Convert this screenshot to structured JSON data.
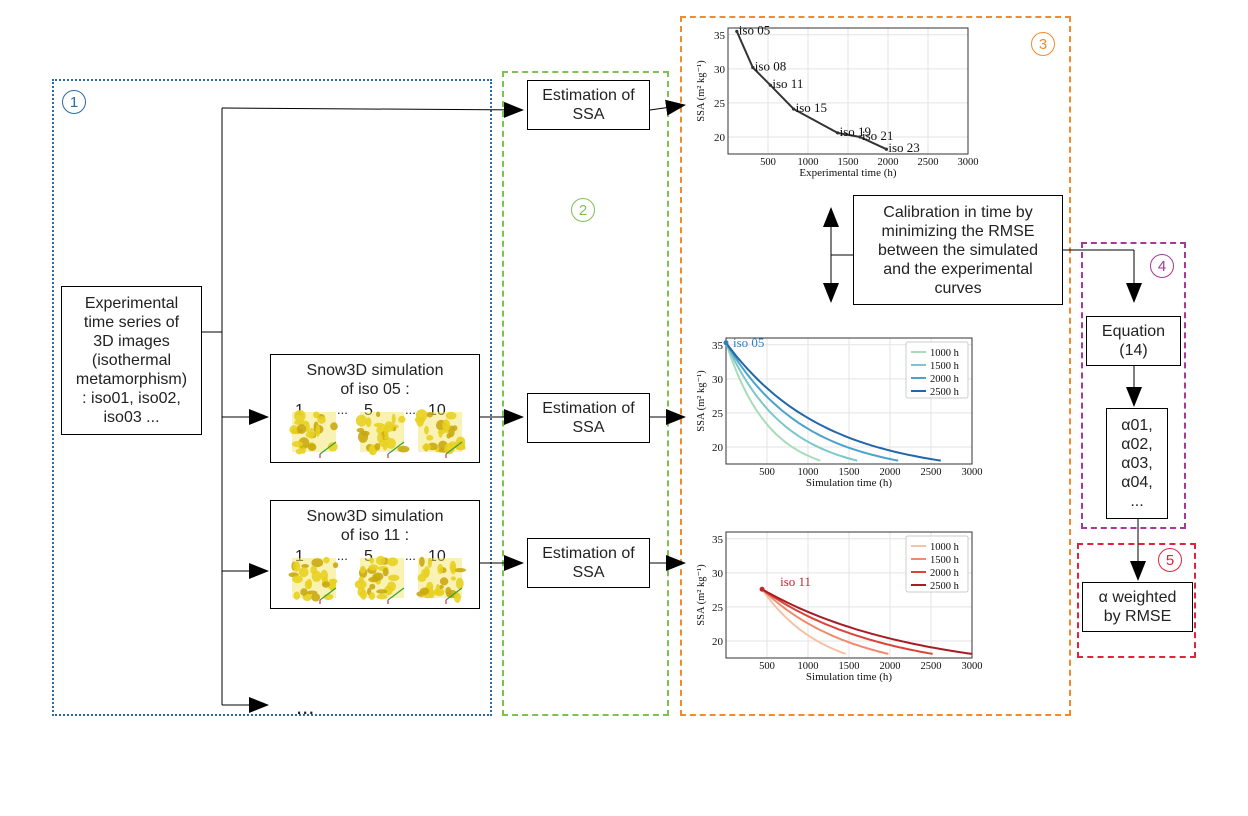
{
  "panels": [
    {
      "number": "1",
      "color": "#2b6aa8"
    },
    {
      "number": "2",
      "color": "#7cc152"
    },
    {
      "number": "3",
      "color": "#f28a2e"
    },
    {
      "number": "4",
      "color": "#a6389a"
    },
    {
      "number": "5",
      "color": "#e2233d"
    }
  ],
  "boxes": {
    "experimental": "Experimental time series of 3D images (isothermal metamorphism) : iso01, iso02, iso03 ...",
    "sim_iso05": "Snow3D simulation of iso 05 :",
    "sim_iso11": "Snow3D simulation of iso 11 :",
    "estimation_1": "Estimation of SSA",
    "estimation_2": "Estimation of SSA",
    "estimation_3": "Estimation of SSA",
    "calibration": "Calibration in time by minimizing the RMSE between the simulated and the experimental curves",
    "equation": "Equation (14)",
    "alphas": [
      "α01,",
      "α02,",
      "α03,",
      "α04,",
      "..."
    ],
    "weighted": "α weighted by RMSE"
  },
  "snapshot_labels": [
    "1",
    "...",
    "5",
    "...",
    "10"
  ],
  "ellipsis": "...",
  "colors": {
    "snow": "#e8d020",
    "line": "#000000"
  },
  "chart_data": [
    {
      "type": "line",
      "xlabel": "Experimental time (h)",
      "ylabel": "SSA  (m² kg⁻¹)",
      "xticks": [
        500,
        1000,
        1500,
        2000,
        2500,
        3000
      ],
      "yticks": [
        20,
        25,
        30,
        35
      ],
      "xlim": [
        0,
        3000
      ],
      "ylim": [
        17.5,
        36
      ],
      "grid": true,
      "series": [
        {
          "values": [
            [
              110,
              35.5
            ],
            [
              310,
              30.2
            ],
            [
              530,
              27.6
            ],
            [
              820,
              24.1
            ],
            [
              1370,
              20.6
            ],
            [
              1650,
              20.0
            ],
            [
              1980,
              18.2
            ]
          ],
          "color": "#333333"
        }
      ],
      "annotations": [
        {
          "text": "iso 05",
          "x": 110,
          "y": 35.5
        },
        {
          "text": "iso 08",
          "x": 310,
          "y": 30.2
        },
        {
          "text": "iso 11",
          "x": 530,
          "y": 27.6
        },
        {
          "text": "iso 15",
          "x": 820,
          "y": 24.1
        },
        {
          "text": "iso 19",
          "x": 1370,
          "y": 20.6
        },
        {
          "text": "iso 21",
          "x": 1650,
          "y": 20.0
        },
        {
          "text": "iso 23",
          "x": 1980,
          "y": 18.2
        }
      ]
    },
    {
      "type": "line",
      "xlabel": "Simulation time (h)",
      "ylabel": "SSA  (m² kg⁻¹)",
      "xticks": [
        500,
        1000,
        1500,
        2000,
        2500,
        3000
      ],
      "yticks": [
        20,
        25,
        30,
        35
      ],
      "xlim": [
        0,
        3000
      ],
      "ylim": [
        17.5,
        36
      ],
      "grid": true,
      "legend": "top-right",
      "start_label": "iso 05",
      "start_label_color": "#2f7fc1",
      "start": [
        0,
        35.3
      ],
      "series": [
        {
          "name": "1000 h",
          "color": "#a8dcb9",
          "end": [
            1150,
            18.0
          ],
          "k": 2.2
        },
        {
          "name": "1500 h",
          "color": "#7cc7cb",
          "end": [
            1600,
            18.0
          ],
          "k": 2.2
        },
        {
          "name": "2000 h",
          "color": "#4aa3cd",
          "end": [
            2100,
            18.0
          ],
          "k": 2.2
        },
        {
          "name": "2500 h",
          "color": "#2267a8",
          "end": [
            2620,
            18.0
          ],
          "k": 2.2
        }
      ]
    },
    {
      "type": "line",
      "xlabel": "Simulation time (h)",
      "ylabel": "SSA  (m² kg⁻¹)",
      "xticks": [
        500,
        1000,
        1500,
        2000,
        2500,
        3000
      ],
      "yticks": [
        20,
        25,
        30,
        35
      ],
      "xlim": [
        0,
        3000
      ],
      "ylim": [
        17.5,
        36
      ],
      "grid": true,
      "legend": "top-right",
      "start_label": "iso 11",
      "start_label_color": "#c0272d",
      "start": [
        440,
        27.6
      ],
      "series": [
        {
          "name": "1000 h",
          "color": "#f7c1a6",
          "end": [
            1460,
            18.1
          ],
          "k": 1.4
        },
        {
          "name": "1500 h",
          "color": "#f08a6e",
          "end": [
            1980,
            18.1
          ],
          "k": 1.4
        },
        {
          "name": "2000 h",
          "color": "#d9453a",
          "end": [
            2520,
            18.1
          ],
          "k": 1.4
        },
        {
          "name": "2500 h",
          "color": "#a81c25",
          "end": [
            3000,
            18.1
          ],
          "k": 1.4
        }
      ]
    }
  ]
}
